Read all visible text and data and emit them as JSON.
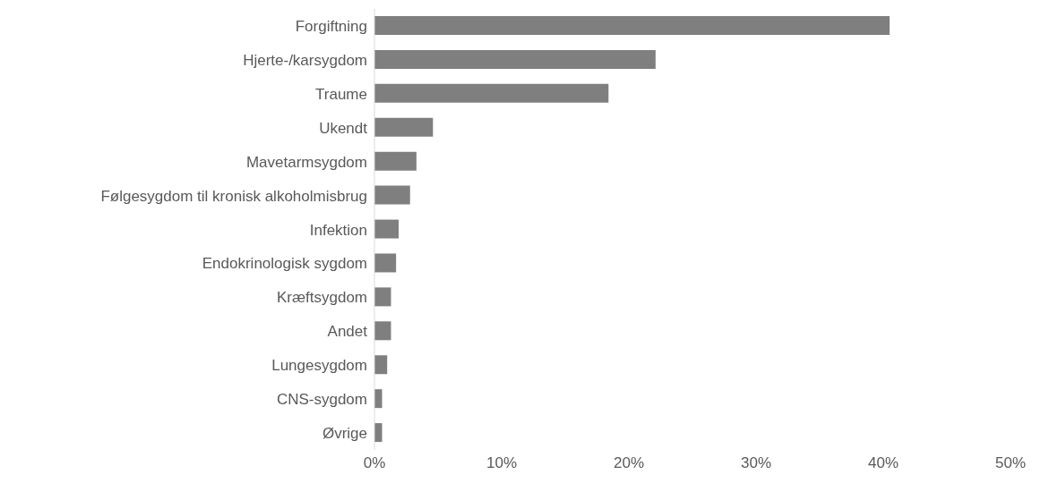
{
  "chart_data": {
    "type": "bar",
    "orientation": "horizontal",
    "categories": [
      "Forgiftning",
      "Hjerte-/karsygdom",
      "Traume",
      "Ukendt",
      "Mavetarmsygdom",
      "Følgesygdom til kronisk alkoholmisbrug",
      "Infektion",
      "Endokrinologisk sygdom",
      "Kræftsygdom",
      "Andet",
      "Lungesygdom",
      "CNS-sygdom",
      "Øvrige"
    ],
    "values": [
      40.5,
      22.1,
      18.4,
      4.6,
      3.3,
      2.8,
      1.9,
      1.7,
      1.3,
      1.3,
      1.0,
      0.6,
      0.6
    ],
    "color": "#7f7f7f",
    "xlim": [
      0,
      50
    ],
    "xticks": [
      {
        "value": 0,
        "label": "0%"
      },
      {
        "value": 10,
        "label": "10%"
      },
      {
        "value": 20,
        "label": "20%"
      },
      {
        "value": 30,
        "label": "30%"
      },
      {
        "value": 40,
        "label": "40%"
      },
      {
        "value": 50,
        "label": "50%"
      }
    ],
    "grid": false
  }
}
